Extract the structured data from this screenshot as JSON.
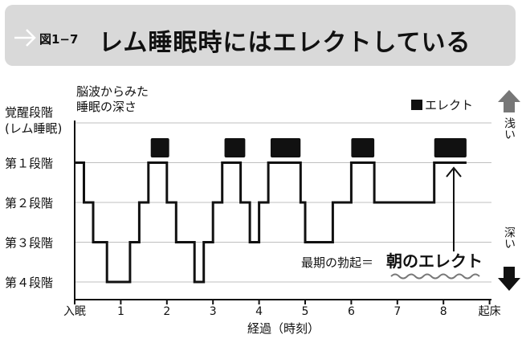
{
  "header": {
    "figure_label": "図1−7",
    "title": "レム睡眠時にはエレクトしている"
  },
  "chart_data": {
    "type": "line",
    "ylabel": "脳波からみた\n睡眠の深さ",
    "xlabel": "経過（時刻）",
    "x_ticks": [
      "入眠",
      "1",
      "2",
      "3",
      "4",
      "5",
      "6",
      "7",
      "8",
      "起床"
    ],
    "x_tick_values": [
      0,
      1,
      2,
      3,
      4,
      5,
      6,
      7,
      8,
      9
    ],
    "y_levels": [
      "覚醒段階\n(レム睡眠)",
      "第１段階",
      "第２段階",
      "第３段階",
      "第４段階"
    ],
    "y_level_values": [
      0,
      1,
      2,
      3,
      4
    ],
    "xlim": [
      0,
      9
    ],
    "shallow_label": "浅い",
    "deep_label": "深い",
    "hypnogram": [
      [
        0,
        1
      ],
      [
        0.2,
        1
      ],
      [
        0.2,
        2
      ],
      [
        0.4,
        2
      ],
      [
        0.4,
        3
      ],
      [
        0.7,
        3
      ],
      [
        0.7,
        4
      ],
      [
        1.2,
        4
      ],
      [
        1.2,
        3
      ],
      [
        1.4,
        3
      ],
      [
        1.4,
        2
      ],
      [
        1.6,
        2
      ],
      [
        1.6,
        1
      ],
      [
        2.0,
        1
      ],
      [
        2.0,
        2
      ],
      [
        2.2,
        2
      ],
      [
        2.2,
        3
      ],
      [
        2.6,
        3
      ],
      [
        2.6,
        4
      ],
      [
        2.8,
        4
      ],
      [
        2.8,
        3
      ],
      [
        3.0,
        3
      ],
      [
        3.0,
        2
      ],
      [
        3.2,
        2
      ],
      [
        3.2,
        1
      ],
      [
        3.6,
        1
      ],
      [
        3.6,
        2
      ],
      [
        3.8,
        2
      ],
      [
        3.8,
        3
      ],
      [
        4.0,
        3
      ],
      [
        4.0,
        2
      ],
      [
        4.2,
        2
      ],
      [
        4.2,
        1
      ],
      [
        4.9,
        1
      ],
      [
        4.9,
        2
      ],
      [
        5.0,
        2
      ],
      [
        5.0,
        3
      ],
      [
        5.6,
        3
      ],
      [
        5.6,
        2
      ],
      [
        6.0,
        2
      ],
      [
        6.0,
        1
      ],
      [
        6.5,
        1
      ],
      [
        6.5,
        2
      ],
      [
        7.8,
        2
      ],
      [
        7.8,
        1
      ],
      [
        8.5,
        1
      ]
    ],
    "erection_periods": [
      [
        1.65,
        2.05
      ],
      [
        3.25,
        3.7
      ],
      [
        4.25,
        4.9
      ],
      [
        6.0,
        6.5
      ],
      [
        7.8,
        8.5
      ]
    ],
    "legend": "エレクト",
    "annotation_text": "最期の勃起＝",
    "annotation_emphasis": "朝のエレクト",
    "colors": {
      "line": "#111111",
      "marker": "#111111",
      "arrow_up": "#777777",
      "arrow_down": "#111111",
      "header_bg": "#d9d9d9"
    }
  }
}
